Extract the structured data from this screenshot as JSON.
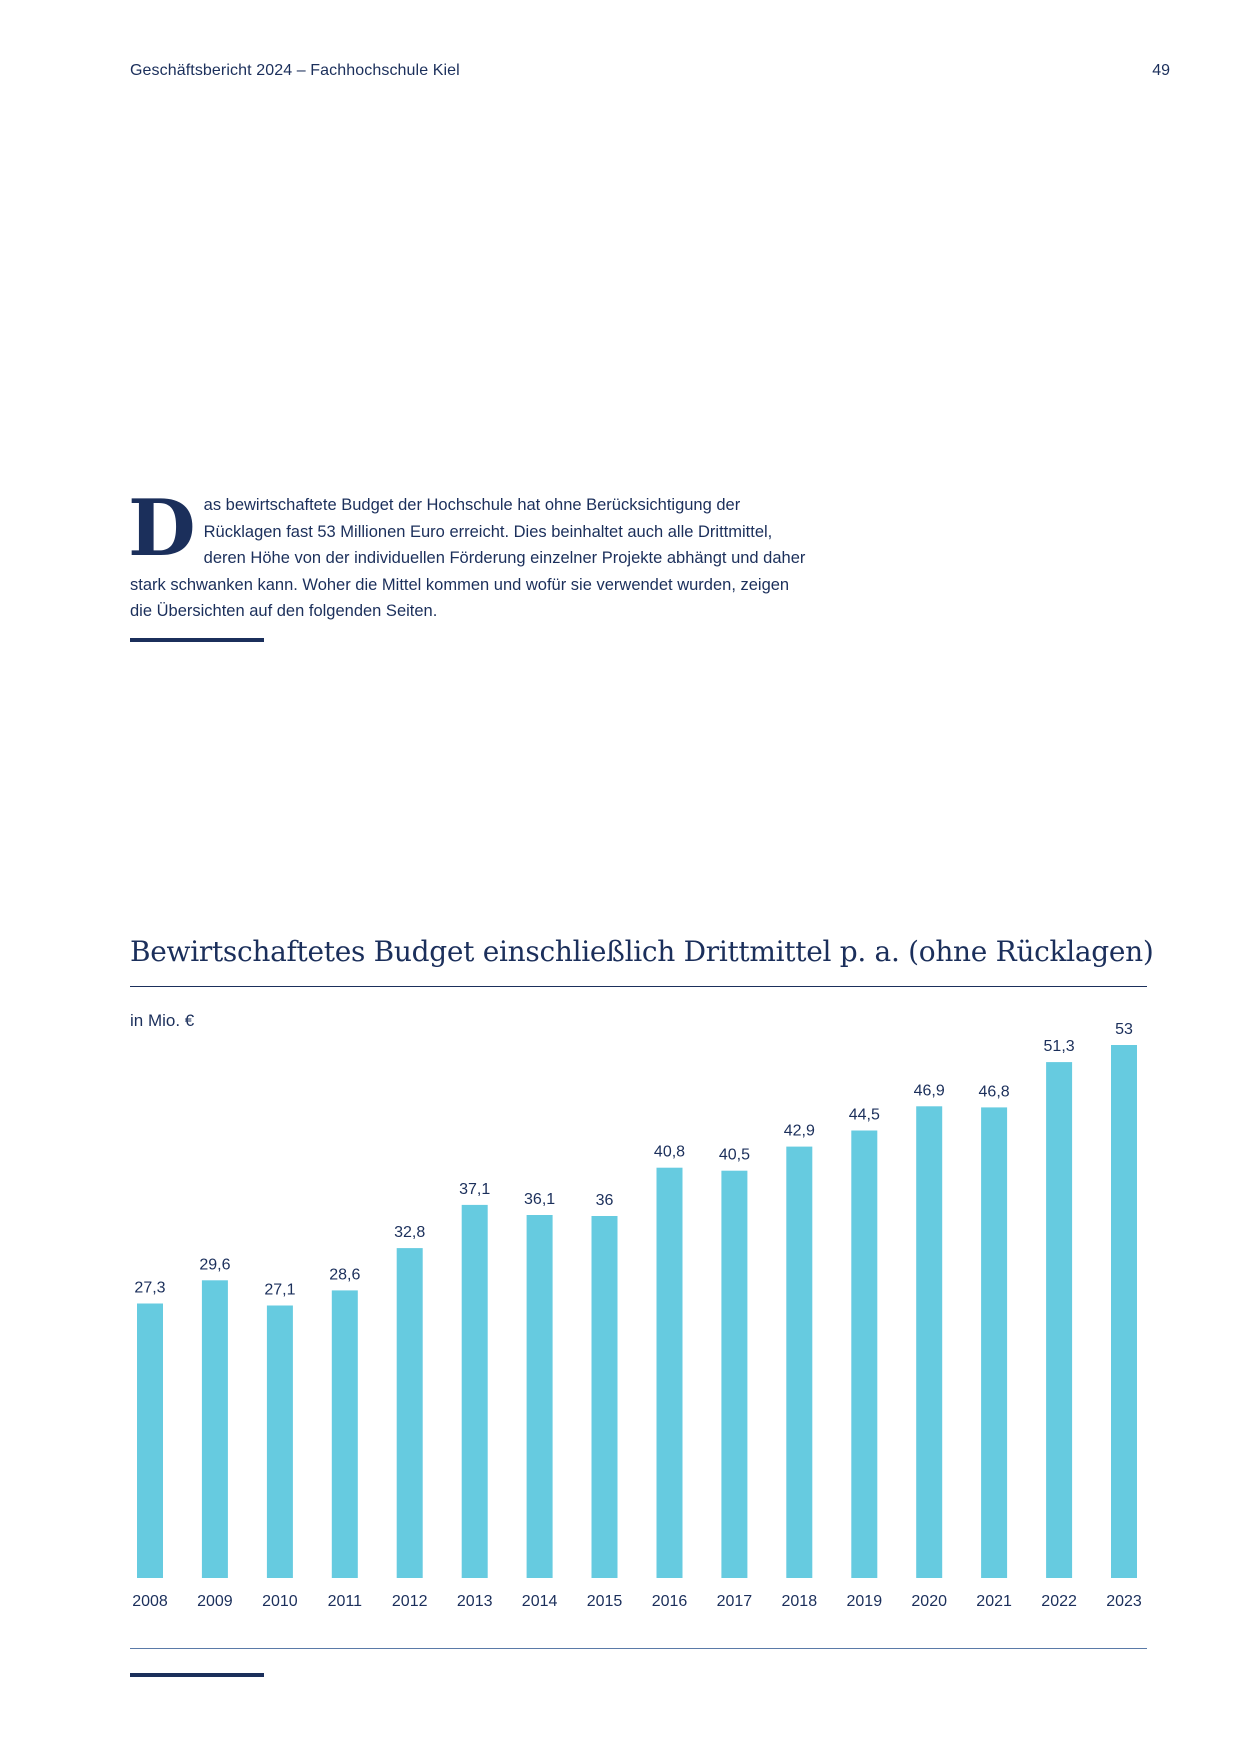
{
  "header": {
    "left": "Geschäftsbericht 2024 – Fachhochschule Kiel",
    "page_number": "49"
  },
  "intro": {
    "dropcap": "D",
    "text": "as bewirtschaftete Budget der Hochschule hat ohne Berücksichtigung der Rücklagen fast 53 Millionen Euro erreicht. Dies beinhaltet auch alle Drittmittel, deren Höhe von der individuellen Förderung einzelner Projekte abhängt und daher stark schwanken kann. Woher die Mittel kommen und wofür sie verwendet wurden, zeigen die Übersichten auf den folgenden Seiten."
  },
  "colors": {
    "text": "#1b2f5b",
    "bar": "#66cbe0",
    "rule": "#1b2f5b"
  },
  "chart_data": {
    "type": "bar",
    "title": "Bewirtschaftetes Budget einschließlich Drittmittel p. a. (ohne Rücklagen)",
    "unit_label": "in Mio. €",
    "categories": [
      "2008",
      "2009",
      "2010",
      "2011",
      "2012",
      "2013",
      "2014",
      "2015",
      "2016",
      "2017",
      "2018",
      "2019",
      "2020",
      "2021",
      "2022",
      "2023"
    ],
    "values": [
      27.3,
      29.6,
      27.1,
      28.6,
      32.8,
      37.1,
      36.1,
      36,
      40.8,
      40.5,
      42.9,
      44.5,
      46.9,
      46.8,
      51.3,
      53
    ],
    "value_labels": [
      "27,3",
      "29,6",
      "27,1",
      "28,6",
      "32,8",
      "37,1",
      "36,1",
      "36",
      "40,8",
      "40,5",
      "42,9",
      "44,5",
      "46,9",
      "46,8",
      "51,3",
      "53"
    ],
    "ylim": [
      0,
      53
    ],
    "grid": false,
    "legend": "none"
  }
}
